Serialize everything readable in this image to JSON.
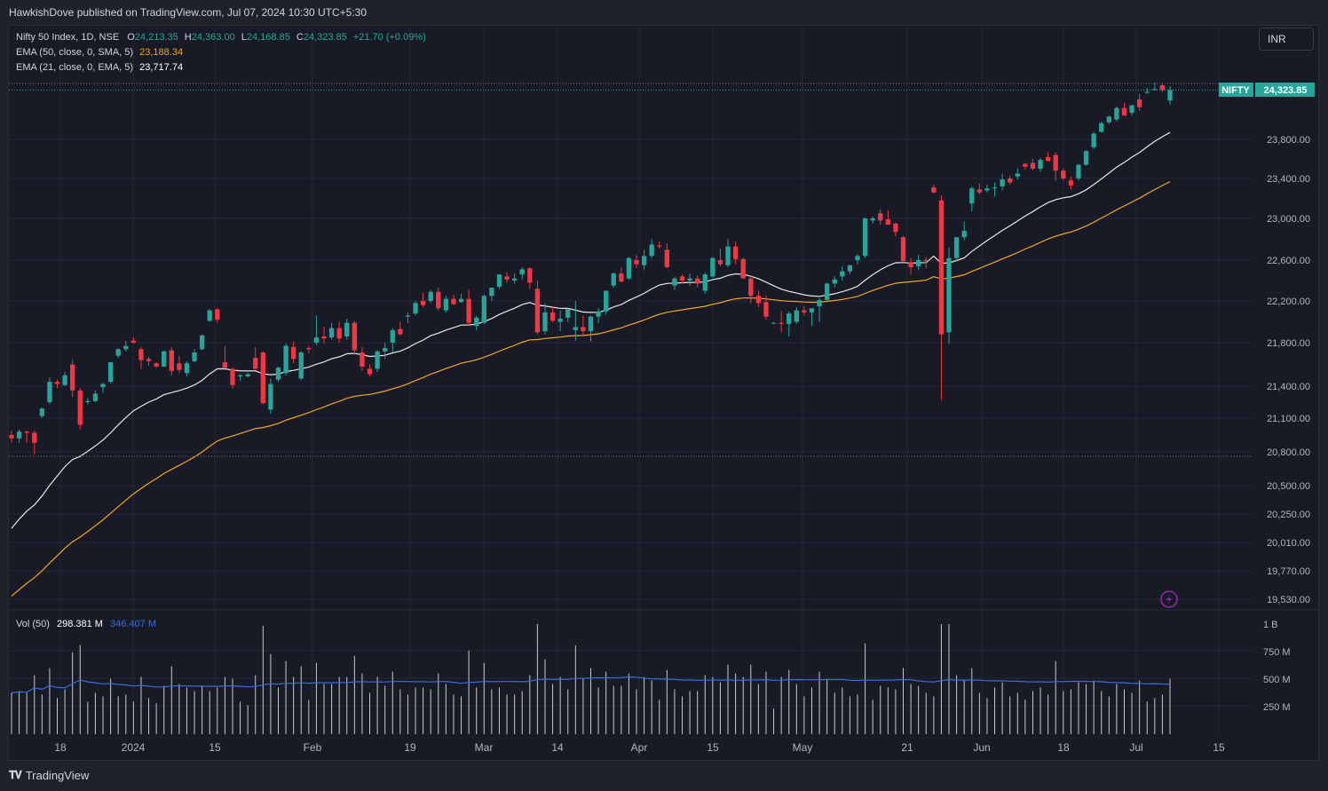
{
  "header": {
    "published_text": "HawkishDove published on TradingView.com, Jul 07, 2024 10:30 UTC+5:30"
  },
  "legend": {
    "symbol": "Nifty 50 Index, 1D, NSE",
    "o_label": "O",
    "o_value": "24,213.35",
    "h_label": "H",
    "h_value": "24,363.00",
    "l_label": "L",
    "l_value": "24,168.85",
    "c_label": "C",
    "c_value": "24,323.85",
    "change": "+21.70 (+0.09%)",
    "ema50_label": "EMA (50, close, 0, SMA, 5)",
    "ema50_value": "23,188.34",
    "ema21_label": "EMA (21, close, 0, EMA, 5)",
    "ema21_value": "23,717.74",
    "vol_label": "Vol (50)",
    "vol_value": "298.381 M",
    "vol_ma_value": "346.407 M"
  },
  "currency_button": "INR",
  "last_price": {
    "symbol": "NIFTY",
    "value": "24,323.85"
  },
  "footer": {
    "brand": "TradingView"
  },
  "colors": {
    "up": "#26a69a",
    "down": "#f23645",
    "ema21": "#e8e8e8",
    "ema50": "#f5a623",
    "vol_ma": "#3d6bd7",
    "volume": "#c8cad0"
  },
  "chart_data": {
    "type": "candlestick",
    "price_axis_ticks": [
      "24,323.85",
      "23,800.00",
      "23,400.00",
      "23,000.00",
      "22,600.00",
      "22,200.00",
      "21,800.00",
      "21,400.00",
      "21,100.00",
      "20,800.00",
      "20,500.00",
      "20,250.00",
      "20,010.00",
      "19,770.00",
      "19,530.00"
    ],
    "volume_axis_ticks": [
      "1 B",
      "750 M",
      "500 M",
      "250 M"
    ],
    "time_axis_ticks": [
      "18",
      "2024",
      "15",
      "Feb",
      "19",
      "Mar",
      "14",
      "Apr",
      "15",
      "May",
      "21",
      "Jun",
      "18",
      "Jul",
      "15"
    ],
    "candles": [
      [
        20950,
        20990,
        20880,
        20920
      ],
      [
        20920,
        21000,
        20880,
        20980
      ],
      [
        20980,
        20990,
        20880,
        20970
      ],
      [
        20970,
        20990,
        20780,
        20880
      ],
      [
        21120,
        21200,
        21100,
        21190
      ],
      [
        21250,
        21480,
        21230,
        21440
      ],
      [
        21440,
        21460,
        21380,
        21420
      ],
      [
        21410,
        21530,
        21400,
        21500
      ],
      [
        21600,
        21640,
        21300,
        21360
      ],
      [
        21360,
        21380,
        21000,
        21040
      ],
      [
        21250,
        21290,
        21230,
        21260
      ],
      [
        21260,
        21360,
        21250,
        21330
      ],
      [
        21390,
        21430,
        21340,
        21420
      ],
      [
        21440,
        21620,
        21430,
        21620
      ],
      [
        21680,
        21750,
        21660,
        21740
      ],
      [
        21740,
        21820,
        21720,
        21770
      ],
      [
        21820,
        21850,
        21790,
        21800
      ],
      [
        21740,
        21760,
        21560,
        21640
      ],
      [
        21650,
        21670,
        21590,
        21630
      ],
      [
        21610,
        21620,
        21570,
        21580
      ],
      [
        21580,
        21730,
        21580,
        21720
      ],
      [
        21730,
        21760,
        21500,
        21540
      ],
      [
        21610,
        21680,
        21520,
        21550
      ],
      [
        21520,
        21630,
        21490,
        21610
      ],
      [
        21630,
        21740,
        21620,
        21710
      ],
      [
        21740,
        21880,
        21730,
        21870
      ],
      [
        22010,
        22120,
        22000,
        22110
      ],
      [
        22120,
        22130,
        21990,
        22020
      ],
      [
        21620,
        21770,
        21570,
        21570
      ],
      [
        21560,
        21570,
        21380,
        21410
      ],
      [
        21490,
        21510,
        21450,
        21500
      ],
      [
        21490,
        21520,
        21480,
        21510
      ],
      [
        21660,
        21760,
        21550,
        21560
      ],
      [
        21710,
        21720,
        21230,
        21240
      ],
      [
        21180,
        21470,
        21140,
        21420
      ],
      [
        21460,
        21580,
        21440,
        21570
      ],
      [
        21520,
        21790,
        21500,
        21770
      ],
      [
        21760,
        21810,
        21610,
        21650
      ],
      [
        21470,
        21720,
        21460,
        21710
      ],
      [
        21750,
        21770,
        21700,
        21740
      ],
      [
        21800,
        22060,
        21780,
        21850
      ],
      [
        21860,
        21950,
        21790,
        21840
      ],
      [
        21850,
        21990,
        21830,
        21940
      ],
      [
        21940,
        22000,
        21800,
        21840
      ],
      [
        21860,
        22030,
        21830,
        21990
      ],
      [
        21990,
        22010,
        21690,
        21730
      ],
      [
        21710,
        21760,
        21540,
        21580
      ],
      [
        21560,
        21600,
        21490,
        21510
      ],
      [
        21560,
        21730,
        21530,
        21720
      ],
      [
        21720,
        21800,
        21650,
        21750
      ],
      [
        21800,
        21940,
        21710,
        21920
      ],
      [
        21930,
        22000,
        21870,
        21880
      ],
      [
        22050,
        22090,
        21990,
        22060
      ],
      [
        22080,
        22200,
        22060,
        22180
      ],
      [
        22200,
        22280,
        22140,
        22160
      ],
      [
        22200,
        22310,
        22180,
        22290
      ],
      [
        22290,
        22330,
        22110,
        22130
      ],
      [
        22110,
        22250,
        22090,
        22220
      ],
      [
        22220,
        22260,
        22160,
        22170
      ],
      [
        22190,
        22270,
        22180,
        22220
      ],
      [
        22220,
        22310,
        21960,
        21990
      ],
      [
        21960,
        22060,
        21920,
        22040
      ],
      [
        21990,
        22260,
        21980,
        22250
      ],
      [
        22250,
        22330,
        22200,
        22330
      ],
      [
        22340,
        22460,
        22320,
        22460
      ],
      [
        22440,
        22480,
        22380,
        22410
      ],
      [
        22400,
        22470,
        22370,
        22420
      ],
      [
        22460,
        22530,
        22410,
        22510
      ],
      [
        22520,
        22530,
        22320,
        22380
      ],
      [
        22320,
        22400,
        21880,
        21900
      ],
      [
        21910,
        22180,
        21880,
        22090
      ],
      [
        22090,
        22150,
        21990,
        22010
      ],
      [
        22000,
        22110,
        21910,
        22030
      ],
      [
        22040,
        22130,
        22000,
        22120
      ],
      [
        21920,
        22200,
        21820,
        21950
      ],
      [
        21950,
        22060,
        21870,
        21910
      ],
      [
        21910,
        22060,
        21810,
        22050
      ],
      [
        22050,
        22130,
        21990,
        22100
      ],
      [
        22100,
        22300,
        22070,
        22300
      ],
      [
        22350,
        22480,
        22330,
        22470
      ],
      [
        22470,
        22530,
        22380,
        22390
      ],
      [
        22420,
        22630,
        22410,
        22620
      ],
      [
        22600,
        22650,
        22520,
        22560
      ],
      [
        22550,
        22700,
        22500,
        22640
      ],
      [
        22640,
        22800,
        22620,
        22750
      ],
      [
        22740,
        22780,
        22710,
        22730
      ],
      [
        22700,
        22760,
        22520,
        22530
      ],
      [
        22350,
        22440,
        22310,
        22420
      ],
      [
        22440,
        22460,
        22370,
        22400
      ],
      [
        22400,
        22470,
        22350,
        22420
      ],
      [
        22420,
        22450,
        22330,
        22370
      ],
      [
        22300,
        22480,
        22270,
        22460
      ],
      [
        22440,
        22630,
        22430,
        22620
      ],
      [
        22600,
        22710,
        22540,
        22560
      ],
      [
        22550,
        22800,
        22530,
        22730
      ],
      [
        22730,
        22780,
        22560,
        22610
      ],
      [
        22610,
        22620,
        22420,
        22420
      ],
      [
        22420,
        22450,
        22180,
        22250
      ],
      [
        22250,
        22300,
        22140,
        22180
      ],
      [
        22190,
        22250,
        22020,
        22050
      ],
      [
        21990,
        22000,
        21980,
        21990
      ],
      [
        21990,
        22100,
        21900,
        21980
      ],
      [
        21980,
        22100,
        21860,
        22080
      ],
      [
        22000,
        22140,
        21980,
        22110
      ],
      [
        22110,
        22150,
        22060,
        22090
      ],
      [
        22090,
        22100,
        21960,
        22130
      ],
      [
        22150,
        22230,
        22000,
        22210
      ],
      [
        22210,
        22380,
        22190,
        22370
      ],
      [
        22370,
        22440,
        22330,
        22410
      ],
      [
        22440,
        22540,
        22400,
        22490
      ],
      [
        22490,
        22550,
        22460,
        22550
      ],
      [
        22600,
        22660,
        22560,
        22640
      ],
      [
        22640,
        23010,
        22620,
        23000
      ],
      [
        22980,
        23020,
        22950,
        23000
      ],
      [
        23050,
        23090,
        22940,
        22980
      ],
      [
        22990,
        23080,
        22940,
        22940
      ],
      [
        22950,
        22960,
        22830,
        22870
      ],
      [
        22820,
        22830,
        22580,
        22590
      ],
      [
        22580,
        22620,
        22460,
        22530
      ],
      [
        22540,
        22650,
        22500,
        22600
      ],
      [
        22600,
        22630,
        22520,
        22590
      ],
      [
        23310,
        23340,
        23250,
        23260
      ],
      [
        23180,
        23230,
        21270,
        21880
      ],
      [
        21900,
        22720,
        21790,
        22620
      ],
      [
        22620,
        22800,
        22590,
        22820
      ],
      [
        22820,
        22970,
        22790,
        22880
      ],
      [
        23150,
        23320,
        23070,
        23300
      ],
      [
        23290,
        23350,
        23240,
        23260
      ],
      [
        23280,
        23340,
        23260,
        23300
      ],
      [
        23300,
        23360,
        23220,
        23310
      ],
      [
        23320,
        23450,
        23280,
        23390
      ],
      [
        23400,
        23430,
        23340,
        23360
      ],
      [
        23420,
        23500,
        23390,
        23450
      ],
      [
        23550,
        23560,
        23490,
        23520
      ],
      [
        23560,
        23600,
        23480,
        23500
      ],
      [
        23500,
        23610,
        23470,
        23590
      ],
      [
        23620,
        23670,
        23570,
        23580
      ],
      [
        23640,
        23670,
        23380,
        23480
      ],
      [
        23480,
        23500,
        23380,
        23400
      ],
      [
        23380,
        23420,
        23290,
        23330
      ],
      [
        23400,
        23550,
        23380,
        23540
      ],
      [
        23540,
        23690,
        23530,
        23680
      ],
      [
        23720,
        23880,
        23700,
        23860
      ],
      [
        23880,
        23990,
        23870,
        23970
      ],
      [
        23980,
        24050,
        23960,
        24040
      ],
      [
        24010,
        24150,
        23990,
        24130
      ],
      [
        24130,
        24180,
        24050,
        24050
      ],
      [
        24080,
        24160,
        24050,
        24160
      ],
      [
        24220,
        24280,
        24100,
        24140
      ],
      [
        24300,
        24340,
        24280,
        24300
      ],
      [
        24320,
        24400,
        24320,
        24330
      ],
      [
        24370,
        24400,
        24300,
        24320
      ],
      [
        24210,
        24360,
        24170,
        24320
      ]
    ]
  }
}
